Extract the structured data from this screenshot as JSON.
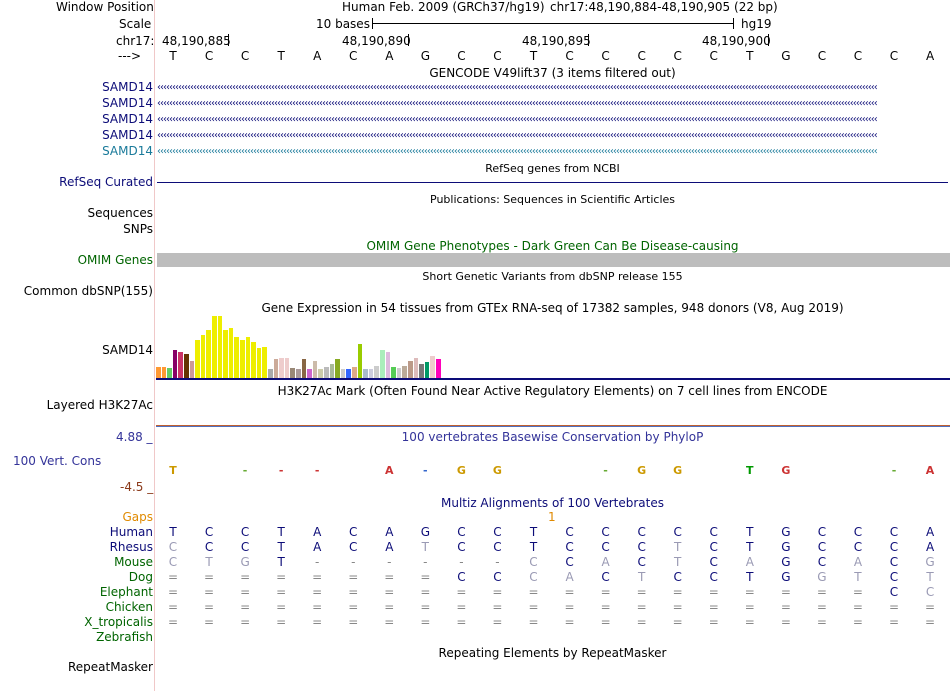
{
  "header": {
    "window_position_label": "Window Position",
    "assembly_text": "Human Feb. 2009 (GRCh37/hg19)",
    "position_text": "chr17:48,190,884-48,190,905 (22 bp)",
    "scale_label": "Scale",
    "scale_text": "10 bases",
    "scale_assembly": "hg19",
    "chrom_label": "chr17:",
    "coords": [
      "48,190,885",
      "48,190,890",
      "48,190,895",
      "48,190,900"
    ],
    "strand_label": "--->",
    "bases": [
      "T",
      "C",
      "C",
      "T",
      "A",
      "C",
      "A",
      "G",
      "C",
      "C",
      "T",
      "C",
      "C",
      "C",
      "C",
      "C",
      "T",
      "G",
      "C",
      "C",
      "C",
      "A"
    ]
  },
  "gencode": {
    "title": "GENCODE V49lift37 (3 items filtered out)",
    "rows": [
      {
        "label": "SAMD14",
        "color": "#0c0c78"
      },
      {
        "label": "SAMD14",
        "color": "#0c0c78"
      },
      {
        "label": "SAMD14",
        "color": "#0c0c78"
      },
      {
        "label": "SAMD14",
        "color": "#0c0c78"
      },
      {
        "label": "SAMD14",
        "color": "#1a7a9a"
      }
    ]
  },
  "refseq": {
    "title": "RefSeq genes from NCBI",
    "label": "RefSeq Curated",
    "color": "#0c0c78"
  },
  "publications": {
    "title": "Publications: Sequences in Scientific Articles",
    "labels": [
      "Sequences",
      "SNPs"
    ]
  },
  "omim": {
    "title": "OMIM Gene Phenotypes - Dark Green Can Be Disease-causing",
    "label": "OMIM Genes",
    "color": "#006400"
  },
  "dbsnp": {
    "title": "Short Genetic Variants from dbSNP release 155",
    "label": "Common dbSNP(155)"
  },
  "gtex": {
    "title": "Gene Expression in 54 tissues from GTEx RNA-seq of 17382 samples, 948 donors (V8, Aug 2019)",
    "label": "SAMD14",
    "bars": [
      {
        "h": 0.18,
        "c": "#ff9933"
      },
      {
        "h": 0.18,
        "c": "#ff9933"
      },
      {
        "h": 0.16,
        "c": "#66cc66"
      },
      {
        "h": 0.45,
        "c": "#880066"
      },
      {
        "h": 0.42,
        "c": "#cc3366"
      },
      {
        "h": 0.38,
        "c": "#663300"
      },
      {
        "h": 0.28,
        "c": "#cc9999"
      },
      {
        "h": 0.62,
        "c": "#eeee00"
      },
      {
        "h": 0.7,
        "c": "#eeee00"
      },
      {
        "h": 0.78,
        "c": "#eeee00"
      },
      {
        "h": 1.0,
        "c": "#eeee00"
      },
      {
        "h": 1.0,
        "c": "#eeee00"
      },
      {
        "h": 0.78,
        "c": "#eeee00"
      },
      {
        "h": 0.8,
        "c": "#eeee00"
      },
      {
        "h": 0.66,
        "c": "#eeee00"
      },
      {
        "h": 0.62,
        "c": "#eeee00"
      },
      {
        "h": 0.66,
        "c": "#eeee00"
      },
      {
        "h": 0.58,
        "c": "#eeee00"
      },
      {
        "h": 0.48,
        "c": "#eeee00"
      },
      {
        "h": 0.5,
        "c": "#eeee00"
      },
      {
        "h": 0.15,
        "c": "#aaaaaa"
      },
      {
        "h": 0.3,
        "c": "#ccaa99"
      },
      {
        "h": 0.32,
        "c": "#eecccc"
      },
      {
        "h": 0.32,
        "c": "#eecccc"
      },
      {
        "h": 0.16,
        "c": "#998877"
      },
      {
        "h": 0.15,
        "c": "#aa9999"
      },
      {
        "h": 0.3,
        "c": "#886644"
      },
      {
        "h": 0.14,
        "c": "#cc66cc"
      },
      {
        "h": 0.28,
        "c": "#ccbbaa"
      },
      {
        "h": 0.15,
        "c": "#ccccaa"
      },
      {
        "h": 0.18,
        "c": "#bbbbbb"
      },
      {
        "h": 0.22,
        "c": "#aabb99"
      },
      {
        "h": 0.3,
        "c": "#88aa22"
      },
      {
        "h": 0.14,
        "c": "#cccccc"
      },
      {
        "h": 0.15,
        "c": "#3366ff"
      },
      {
        "h": 0.18,
        "c": "#ddaa88"
      },
      {
        "h": 0.55,
        "c": "#99cc00"
      },
      {
        "h": 0.15,
        "c": "#aabbcc"
      },
      {
        "h": 0.14,
        "c": "#ccccdd"
      },
      {
        "h": 0.2,
        "c": "#cccccc"
      },
      {
        "h": 0.45,
        "c": "#aaeebb"
      },
      {
        "h": 0.42,
        "c": "#ddbbdd"
      },
      {
        "h": 0.18,
        "c": "#55cc55"
      },
      {
        "h": 0.16,
        "c": "#cccccc"
      },
      {
        "h": 0.2,
        "c": "#bbaa99"
      },
      {
        "h": 0.28,
        "c": "#bb9988"
      },
      {
        "h": 0.32,
        "c": "#ddbbbb"
      },
      {
        "h": 0.22,
        "c": "#777777"
      },
      {
        "h": 0.26,
        "c": "#009966"
      },
      {
        "h": 0.35,
        "c": "#eecccc"
      },
      {
        "h": 0.3,
        "c": "#ff00bb"
      }
    ]
  },
  "h3k27ac": {
    "title": "H3K27Ac Mark (Often Found Near Active Regulatory Elements) on 7 cell lines from ENCODE",
    "label": "Layered H3K27Ac"
  },
  "conservation": {
    "title": "100 vertebrates Basewise Conservation by PhyloP",
    "label": "100 Vert. Cons",
    "ymax": "4.88 _",
    "ymin": "-4.5 _"
  },
  "multiz": {
    "title": "Multiz Alignments of 100 Vertebrates",
    "gaps_label": "Gaps",
    "gap_count": "1",
    "species": [
      {
        "name": "Human",
        "seq": [
          "T",
          "C",
          "C",
          "T",
          "A",
          "C",
          "A",
          "G",
          "C",
          "C",
          "T",
          "C",
          "C",
          "C",
          "C",
          "C",
          "T",
          "G",
          "C",
          "C",
          "C",
          "A"
        ]
      },
      {
        "name": "Rhesus",
        "seq": [
          "C",
          "C",
          "C",
          "T",
          "A",
          "C",
          "A",
          "T",
          "C",
          "C",
          "T",
          "C",
          "C",
          "C",
          "T",
          "C",
          "T",
          "G",
          "C",
          "C",
          "C",
          "A"
        ]
      },
      {
        "name": "Mouse",
        "seq": [
          "C",
          "T",
          "G",
          "T",
          "-",
          "-",
          "-",
          "-",
          "-",
          "-",
          "C",
          "C",
          "A",
          "C",
          "T",
          "C",
          "A",
          "G",
          "C",
          "A",
          "C",
          "G"
        ]
      },
      {
        "name": "Dog",
        "seq": [
          "=",
          "=",
          "=",
          "=",
          "=",
          "=",
          "=",
          "=",
          "C",
          "C",
          "C",
          "A",
          "C",
          "T",
          "C",
          "C",
          "T",
          "G",
          "G",
          "T",
          "C",
          "T"
        ]
      },
      {
        "name": "Elephant",
        "seq": [
          "=",
          "=",
          "=",
          "=",
          "=",
          "=",
          "=",
          "=",
          "=",
          "=",
          "=",
          "=",
          "=",
          "=",
          "=",
          "=",
          "=",
          "=",
          "=",
          "=",
          "C",
          "C"
        ]
      },
      {
        "name": "Chicken",
        "seq": [
          "=",
          "=",
          "=",
          "=",
          "=",
          "=",
          "=",
          "=",
          "=",
          "=",
          "=",
          "=",
          "=",
          "=",
          "=",
          "=",
          "=",
          "=",
          "=",
          "=",
          "=",
          "="
        ]
      },
      {
        "name": "X_tropicalis",
        "seq": [
          "=",
          "=",
          "=",
          "=",
          "=",
          "=",
          "=",
          "=",
          "=",
          "=",
          "=",
          "=",
          "=",
          "=",
          "=",
          "=",
          "=",
          "=",
          "=",
          "=",
          "=",
          "="
        ]
      },
      {
        "name": "Zebrafish",
        "seq": []
      }
    ]
  },
  "repeatmasker": {
    "title": "Repeating Elements by RepeatMasker",
    "label": "RepeatMasker"
  },
  "colors": {
    "navy": "#0c0c78",
    "gaps": "#e08a00",
    "green": "#006400",
    "cons": "#555599",
    "diff": "#9a9ab4"
  }
}
